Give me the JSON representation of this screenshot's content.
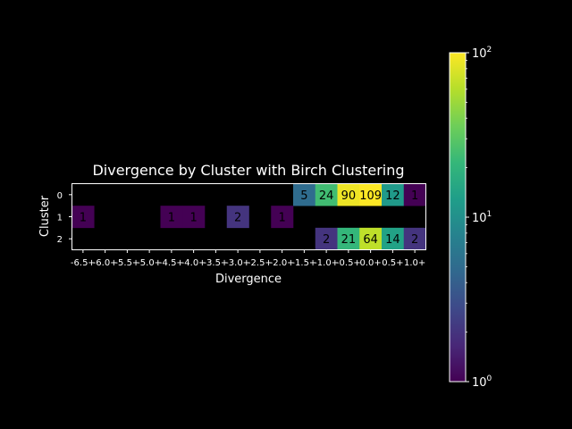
{
  "chart_data": {
    "type": "heatmap",
    "title": "Divergence by Cluster with Birch Clustering",
    "xlabel": "Divergence",
    "ylabel": "Cluster",
    "x_categories": [
      "-6.5+",
      "-6.0+",
      "-5.5+",
      "-5.0+",
      "-4.5+",
      "-4.0+",
      "-3.5+",
      "-3.0+",
      "-2.5+",
      "-2.0+",
      "-1.5+",
      "-1.0+",
      "-0.5+",
      "0.0+",
      "0.5+",
      "1.0+"
    ],
    "y_categories": [
      "0",
      "1",
      "2"
    ],
    "values": [
      [
        null,
        null,
        null,
        null,
        null,
        null,
        null,
        null,
        null,
        null,
        5,
        24,
        90,
        109,
        12,
        1
      ],
      [
        1,
        null,
        null,
        null,
        1,
        1,
        null,
        2,
        null,
        1,
        null,
        null,
        null,
        null,
        null,
        null
      ],
      [
        null,
        null,
        null,
        null,
        null,
        null,
        null,
        null,
        null,
        null,
        null,
        2,
        21,
        64,
        14,
        2
      ]
    ],
    "colorscale": "viridis",
    "color_scale_type": "log",
    "color_range": [
      1,
      100
    ],
    "colorbar_ticks": [
      {
        "value": 1,
        "base": "10",
        "exp": "0"
      },
      {
        "value": 10,
        "base": "10",
        "exp": "1"
      },
      {
        "value": 100,
        "base": "10",
        "exp": "2"
      }
    ],
    "background": "#000000",
    "text_color": "#ffffff"
  }
}
